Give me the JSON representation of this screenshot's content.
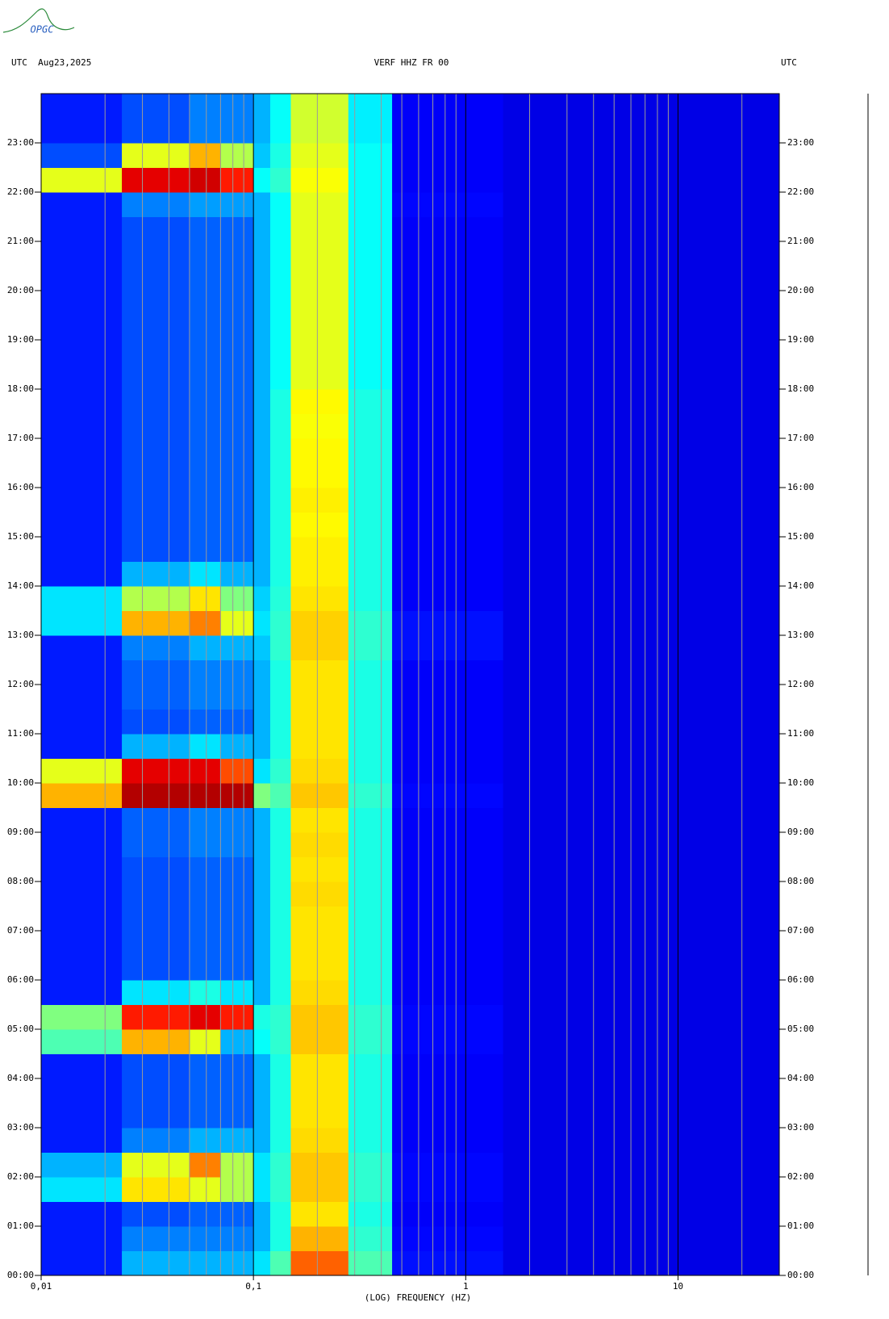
{
  "chart_data": {
    "type": "spectrogram",
    "logo": "OPGC",
    "header_left": "UTC  Aug23,2025",
    "title": "VERF HHZ FR 00",
    "header_right": "UTC",
    "xlabel": "(LOG) FREQUENCY (HZ)",
    "xscale": "log",
    "xlim": [
      0.01,
      30
    ],
    "xticks": [
      {
        "value": 0.01,
        "label": "0,01"
      },
      {
        "value": 0.1,
        "label": "0,1"
      },
      1,
      10
    ],
    "x_minor_grid": [
      0.02,
      0.03,
      0.04,
      0.05,
      0.06,
      0.07,
      0.08,
      0.09,
      0.2,
      0.3,
      0.4,
      0.5,
      0.6,
      0.7,
      0.8,
      0.9,
      2,
      3,
      4,
      5,
      6,
      7,
      8,
      9,
      20
    ],
    "ylim": [
      0,
      24
    ],
    "yticks": [
      {
        "value": 0,
        "label": "00:00"
      },
      {
        "value": 1,
        "label": "01:00"
      },
      {
        "value": 2,
        "label": "02:00"
      },
      {
        "value": 3,
        "label": "03:00"
      },
      {
        "value": 4,
        "label": "04:00"
      },
      {
        "value": 5,
        "label": "05:00"
      },
      {
        "value": 6,
        "label": "06:00"
      },
      {
        "value": 7,
        "label": "07:00"
      },
      {
        "value": 8,
        "label": "08:00"
      },
      {
        "value": 9,
        "label": "09:00"
      },
      {
        "value": 10,
        "label": "10:00"
      },
      {
        "value": 11,
        "label": "11:00"
      },
      {
        "value": 12,
        "label": "12:00"
      },
      {
        "value": 13,
        "label": "13:00"
      },
      {
        "value": 14,
        "label": "14:00"
      },
      {
        "value": 15,
        "label": "15:00"
      },
      {
        "value": 16,
        "label": "16:00"
      },
      {
        "value": 17,
        "label": "17:00"
      },
      {
        "value": 18,
        "label": "18:00"
      },
      {
        "value": 19,
        "label": "19:00"
      },
      {
        "value": 20,
        "label": "20:00"
      },
      {
        "value": 21,
        "label": "21:00"
      },
      {
        "value": 22,
        "label": "22:00"
      },
      {
        "value": 23,
        "label": "23:00"
      }
    ],
    "freq_bins": [
      0.01,
      0.024,
      0.05,
      0.07,
      0.1,
      0.12,
      0.15,
      0.28,
      0.45,
      1.5,
      30
    ],
    "z": [
      [
        0.15,
        0.3,
        0.3,
        0.3,
        0.35,
        0.45,
        0.78,
        0.45,
        0.14,
        0.1
      ],
      [
        0.15,
        0.25,
        0.25,
        0.25,
        0.3,
        0.4,
        0.7,
        0.42,
        0.13,
        0.1
      ],
      [
        0.15,
        0.2,
        0.22,
        0.22,
        0.3,
        0.4,
        0.65,
        0.4,
        0.12,
        0.1
      ],
      [
        0.35,
        0.65,
        0.6,
        0.55,
        0.35,
        0.42,
        0.68,
        0.42,
        0.13,
        0.1
      ],
      [
        0.3,
        0.6,
        0.75,
        0.55,
        0.35,
        0.42,
        0.68,
        0.42,
        0.13,
        0.1
      ],
      [
        0.15,
        0.25,
        0.3,
        0.3,
        0.3,
        0.4,
        0.66,
        0.4,
        0.12,
        0.1
      ],
      [
        0.15,
        0.2,
        0.22,
        0.22,
        0.3,
        0.4,
        0.65,
        0.4,
        0.12,
        0.1
      ],
      [
        0.15,
        0.2,
        0.22,
        0.22,
        0.3,
        0.4,
        0.65,
        0.4,
        0.12,
        0.1
      ],
      [
        0.15,
        0.2,
        0.22,
        0.22,
        0.3,
        0.4,
        0.65,
        0.4,
        0.12,
        0.1
      ],
      [
        0.45,
        0.7,
        0.6,
        0.3,
        0.38,
        0.42,
        0.68,
        0.42,
        0.13,
        0.1
      ],
      [
        0.5,
        0.85,
        0.9,
        0.85,
        0.4,
        0.42,
        0.68,
        0.42,
        0.13,
        0.1
      ],
      [
        0.15,
        0.35,
        0.4,
        0.35,
        0.3,
        0.4,
        0.66,
        0.4,
        0.12,
        0.1
      ],
      [
        0.15,
        0.2,
        0.22,
        0.22,
        0.3,
        0.4,
        0.65,
        0.4,
        0.12,
        0.1
      ],
      [
        0.15,
        0.2,
        0.22,
        0.22,
        0.3,
        0.4,
        0.65,
        0.4,
        0.12,
        0.1
      ],
      [
        0.15,
        0.2,
        0.22,
        0.22,
        0.3,
        0.4,
        0.65,
        0.4,
        0.12,
        0.1
      ],
      [
        0.15,
        0.2,
        0.22,
        0.22,
        0.3,
        0.4,
        0.66,
        0.4,
        0.12,
        0.1
      ],
      [
        0.15,
        0.2,
        0.22,
        0.22,
        0.3,
        0.4,
        0.65,
        0.4,
        0.12,
        0.1
      ],
      [
        0.15,
        0.22,
        0.25,
        0.25,
        0.3,
        0.4,
        0.66,
        0.4,
        0.12,
        0.1
      ],
      [
        0.15,
        0.22,
        0.25,
        0.25,
        0.3,
        0.4,
        0.65,
        0.4,
        0.12,
        0.1
      ],
      [
        0.7,
        0.95,
        0.95,
        0.95,
        0.5,
        0.45,
        0.68,
        0.42,
        0.13,
        0.1
      ],
      [
        0.6,
        0.9,
        0.9,
        0.8,
        0.35,
        0.42,
        0.66,
        0.4,
        0.12,
        0.1
      ],
      [
        0.15,
        0.3,
        0.35,
        0.3,
        0.3,
        0.4,
        0.65,
        0.4,
        0.12,
        0.1
      ],
      [
        0.15,
        0.2,
        0.22,
        0.22,
        0.3,
        0.4,
        0.65,
        0.4,
        0.12,
        0.1
      ],
      [
        0.15,
        0.22,
        0.25,
        0.25,
        0.3,
        0.4,
        0.65,
        0.4,
        0.12,
        0.1
      ],
      [
        0.15,
        0.22,
        0.25,
        0.25,
        0.3,
        0.4,
        0.65,
        0.4,
        0.12,
        0.1
      ],
      [
        0.15,
        0.25,
        0.3,
        0.3,
        0.32,
        0.42,
        0.67,
        0.42,
        0.14,
        0.1
      ],
      [
        0.35,
        0.7,
        0.75,
        0.6,
        0.35,
        0.42,
        0.67,
        0.42,
        0.14,
        0.1
      ],
      [
        0.35,
        0.55,
        0.65,
        0.5,
        0.33,
        0.41,
        0.65,
        0.4,
        0.12,
        0.1
      ],
      [
        0.15,
        0.3,
        0.35,
        0.3,
        0.3,
        0.4,
        0.64,
        0.4,
        0.12,
        0.1
      ],
      [
        0.15,
        0.2,
        0.22,
        0.22,
        0.3,
        0.4,
        0.64,
        0.4,
        0.12,
        0.1
      ],
      [
        0.15,
        0.2,
        0.22,
        0.22,
        0.3,
        0.4,
        0.63,
        0.4,
        0.12,
        0.1
      ],
      [
        0.15,
        0.2,
        0.22,
        0.22,
        0.3,
        0.4,
        0.64,
        0.4,
        0.12,
        0.1
      ],
      [
        0.15,
        0.2,
        0.22,
        0.22,
        0.3,
        0.4,
        0.63,
        0.4,
        0.12,
        0.1
      ],
      [
        0.15,
        0.2,
        0.22,
        0.22,
        0.3,
        0.4,
        0.63,
        0.4,
        0.12,
        0.1
      ],
      [
        0.15,
        0.2,
        0.22,
        0.22,
        0.3,
        0.4,
        0.62,
        0.4,
        0.12,
        0.1
      ],
      [
        0.15,
        0.2,
        0.22,
        0.22,
        0.3,
        0.4,
        0.63,
        0.4,
        0.12,
        0.1
      ],
      [
        0.15,
        0.2,
        0.22,
        0.22,
        0.3,
        0.38,
        0.6,
        0.38,
        0.12,
        0.1
      ],
      [
        0.15,
        0.2,
        0.22,
        0.22,
        0.3,
        0.38,
        0.6,
        0.38,
        0.12,
        0.1
      ],
      [
        0.15,
        0.2,
        0.22,
        0.22,
        0.3,
        0.38,
        0.6,
        0.38,
        0.12,
        0.1
      ],
      [
        0.15,
        0.2,
        0.22,
        0.22,
        0.3,
        0.38,
        0.6,
        0.38,
        0.12,
        0.1
      ],
      [
        0.15,
        0.2,
        0.22,
        0.22,
        0.3,
        0.38,
        0.6,
        0.38,
        0.12,
        0.1
      ],
      [
        0.15,
        0.2,
        0.22,
        0.22,
        0.3,
        0.38,
        0.6,
        0.38,
        0.12,
        0.1
      ],
      [
        0.15,
        0.2,
        0.22,
        0.22,
        0.3,
        0.38,
        0.6,
        0.38,
        0.12,
        0.1
      ],
      [
        0.15,
        0.25,
        0.28,
        0.28,
        0.3,
        0.38,
        0.6,
        0.38,
        0.13,
        0.1
      ],
      [
        0.6,
        0.9,
        0.92,
        0.85,
        0.38,
        0.42,
        0.62,
        0.38,
        0.12,
        0.1
      ],
      [
        0.2,
        0.6,
        0.7,
        0.55,
        0.32,
        0.4,
        0.6,
        0.38,
        0.12,
        0.1
      ],
      [
        0.15,
        0.2,
        0.25,
        0.25,
        0.3,
        0.38,
        0.58,
        0.36,
        0.12,
        0.1
      ],
      [
        0.15,
        0.2,
        0.25,
        0.25,
        0.3,
        0.38,
        0.58,
        0.36,
        0.12,
        0.1
      ]
    ]
  }
}
